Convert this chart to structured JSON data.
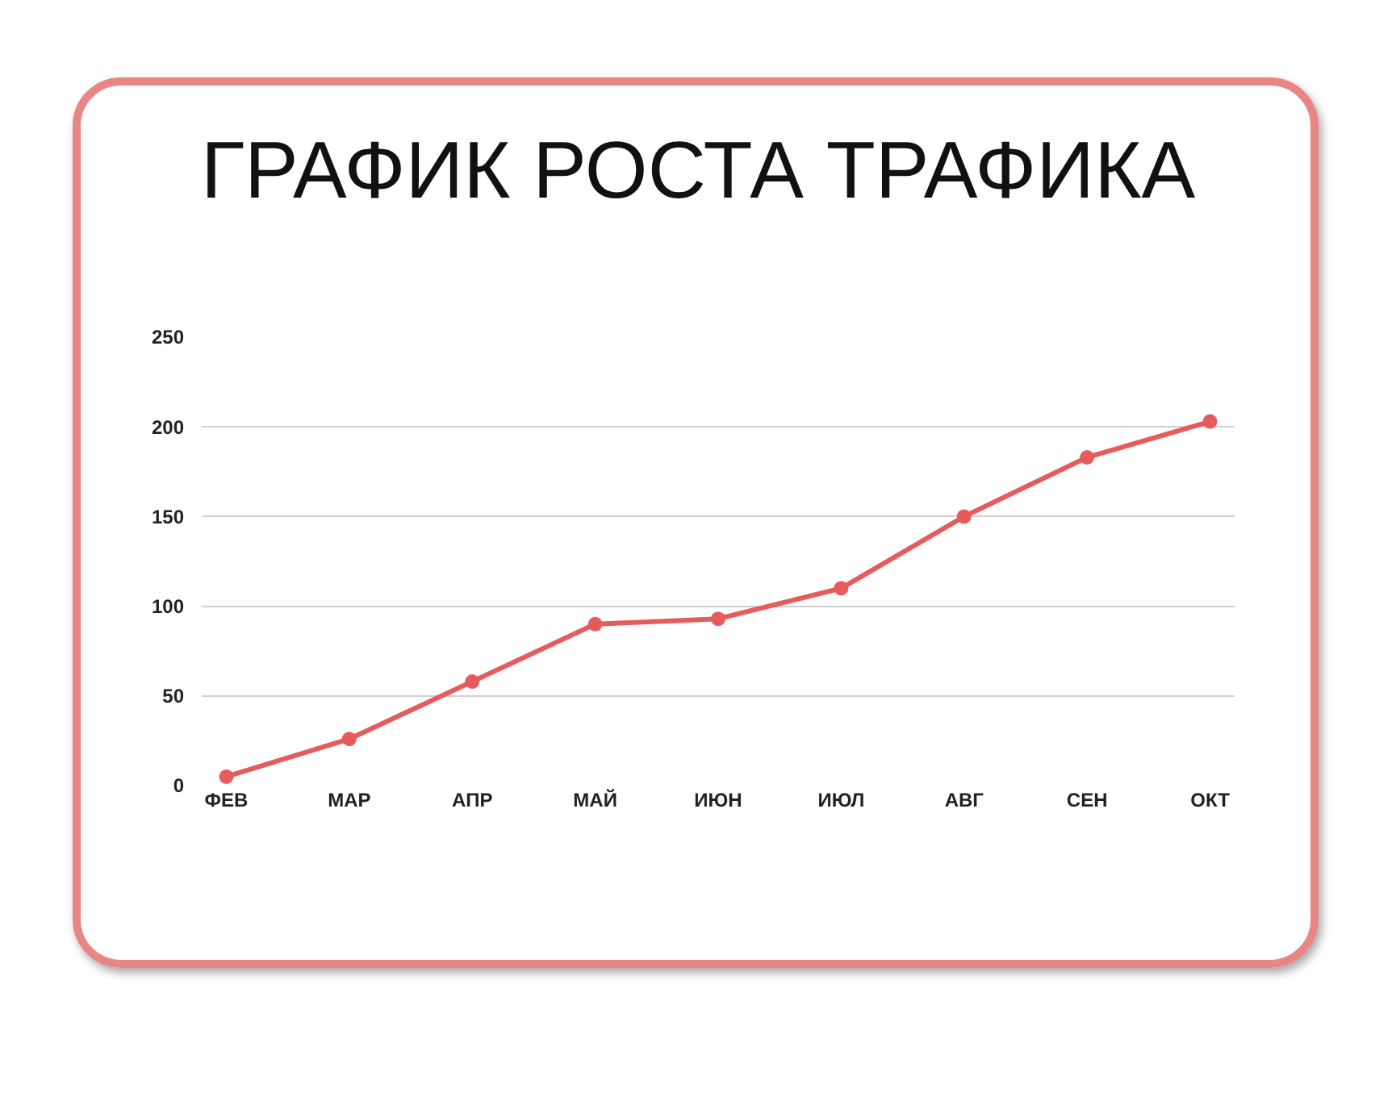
{
  "chart_data": {
    "type": "line",
    "title": "ГРАФИК РОСТА ТРАФИКА",
    "categories": [
      "ФЕВ",
      "МАР",
      "АПР",
      "МАЙ",
      "ИЮН",
      "ИЮЛ",
      "АВГ",
      "СЕН",
      "ОКТ"
    ],
    "series": [
      {
        "color": "#e65c5c",
        "values": [
          5,
          26,
          58,
          90,
          93,
          110,
          150,
          183,
          203
        ]
      }
    ],
    "ylim": [
      0,
      250
    ],
    "yticks": [
      0,
      50,
      100,
      150,
      200,
      250
    ],
    "grid": "y",
    "legend": false,
    "marker": "circle",
    "line_style": "solid"
  }
}
